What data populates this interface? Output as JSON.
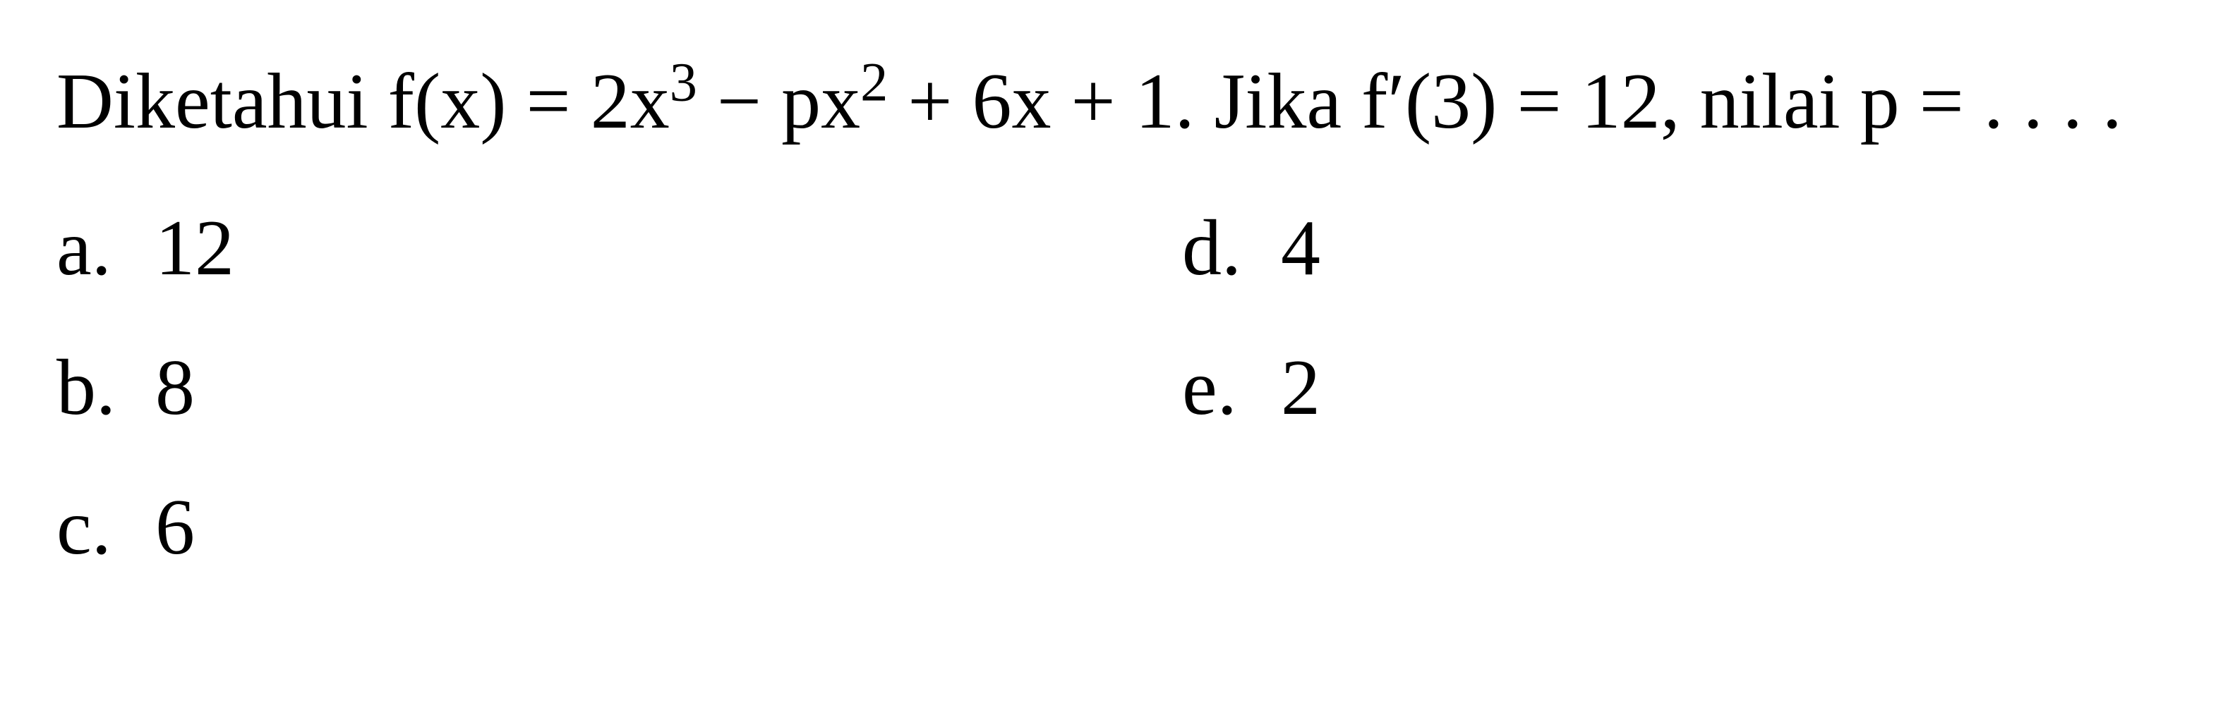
{
  "question": {
    "text_prefix": "Diketahui f(x) = 2x",
    "exp1": "3",
    "text_mid1": " − px",
    "exp2": "2",
    "text_mid2": " + 6x + 1. Jika f",
    "prime": "′",
    "text_mid3": "(3) = 12, nilai p = . . . .",
    "fontsize": 112,
    "color": "#000000"
  },
  "options": {
    "a": {
      "letter": "a.",
      "value": "12"
    },
    "b": {
      "letter": "b.",
      "value": "8"
    },
    "c": {
      "letter": "c.",
      "value": "6"
    },
    "d": {
      "letter": "d.",
      "value": "4"
    },
    "e": {
      "letter": "e.",
      "value": "2"
    }
  },
  "styling": {
    "background_color": "#ffffff",
    "text_color": "#000000",
    "font_family": "Times New Roman, serif",
    "font_size_pt": 84,
    "line_height": 1.5,
    "option_letter_width": 140
  }
}
